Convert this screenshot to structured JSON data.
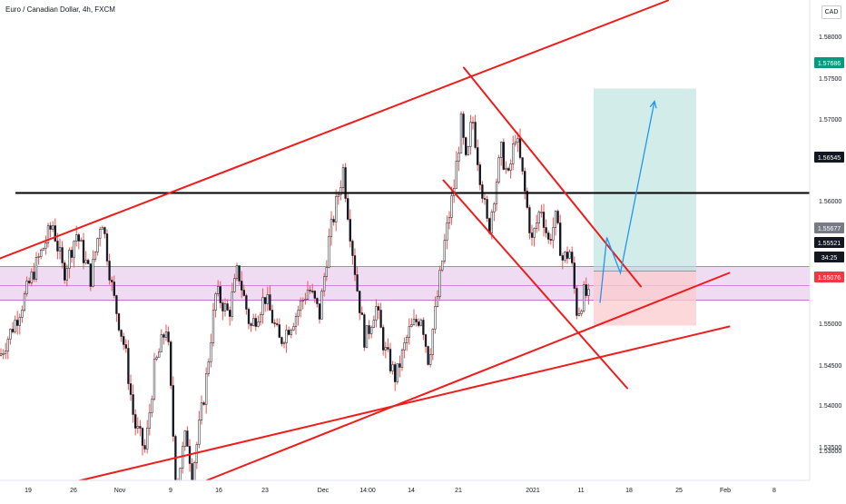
{
  "chart_data": {
    "type": "candlestick",
    "title": "Euro / Canadian Dollar, 4h, FXCM",
    "currency": "CAD",
    "y_axis": {
      "range": [
        1.528,
        1.5866
      ],
      "ticks": [
        "1.58000",
        "1.57500",
        "1.57000",
        "1.56000",
        "1.55000",
        "1.54500",
        "1.54000",
        "1.53500",
        "1.53000"
      ],
      "scale": "linear"
    },
    "x_axis": {
      "labels": [
        "19",
        "26",
        "Nov",
        "9",
        "16",
        "23",
        "Dec",
        "14:00",
        "14",
        "21",
        "2021",
        "11",
        "18",
        "25",
        "Feb",
        "8"
      ]
    },
    "price_labels": [
      {
        "value": "1.57686",
        "role": "target",
        "color": "#089981"
      },
      {
        "value": "1.56545",
        "role": "horizontal-resistance",
        "color": "#131722"
      },
      {
        "value": "1.55677",
        "role": "entry",
        "color": "#787b86"
      },
      {
        "value": "1.55521",
        "role": "last-price",
        "color": "#131722"
      },
      {
        "value": "34:25",
        "role": "bar-countdown",
        "color": "#131722"
      },
      {
        "value": "1.55076",
        "role": "stop",
        "color": "#f23645"
      }
    ],
    "horizontal_line": {
      "price": 1.56545,
      "color": "#000000"
    },
    "zone": {
      "low": 1.5536,
      "high": 1.5573,
      "color": "#9c27b0"
    },
    "position": {
      "type": "long",
      "entry": 1.55677,
      "target": 1.57686,
      "stop": 1.55076,
      "profit_color": "#b2dfdb",
      "loss_color": "#fccbcd"
    },
    "trendlines": [
      {
        "name": "upper-channel-line",
        "from": {
          "date": "2020-10-09",
          "price": 1.5565
        },
        "to": {
          "date": "2021-01-21",
          "price": 1.5866
        }
      },
      {
        "name": "steep-support-line",
        "from": {
          "date": "2020-11-07",
          "price": 1.5316
        },
        "to": {
          "date": "2021-01-30",
          "price": 1.5566
        }
      },
      {
        "name": "long-support-line",
        "from": {
          "date": "2020-10-09",
          "price": 1.5306
        },
        "to": {
          "date": "2021-01-30",
          "price": 1.5507
        }
      },
      {
        "name": "descending-channel-upper",
        "from": {
          "date": "2020-12-22",
          "price": 1.5792
        },
        "to": {
          "date": "2021-01-17",
          "price": 1.5551
        }
      },
      {
        "name": "descending-channel-lower",
        "from": {
          "date": "2020-12-19",
          "price": 1.5668
        },
        "to": {
          "date": "2021-01-15",
          "price": 1.5439
        }
      }
    ],
    "projection": {
      "color": "#2196f3",
      "points": [
        {
          "date": "2021-01-11",
          "price": 1.5533
        },
        {
          "date": "2021-01-12",
          "price": 1.5605
        },
        {
          "date": "2021-01-14",
          "price": 1.5566
        },
        {
          "date": "2021-01-19",
          "price": 1.5755
        }
      ]
    },
    "colors": {
      "up": "#ffffff",
      "down": "#131722",
      "wick": "#ef5350",
      "trend": "#ef1c1c"
    },
    "grid": false,
    "legend": "none"
  }
}
